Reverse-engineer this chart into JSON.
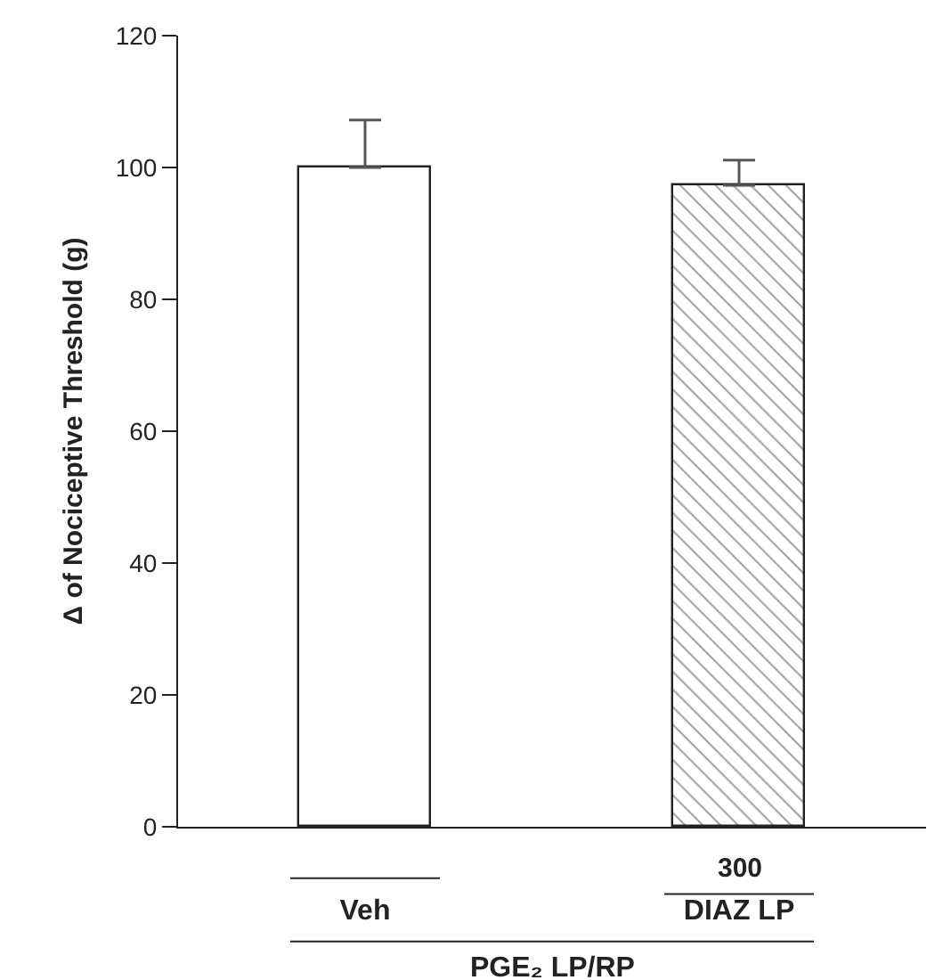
{
  "chart_data": {
    "type": "bar",
    "ylabel": "Δ of Nociceptive Threshold (g)",
    "categories": [
      "Veh",
      "DIAZ LP"
    ],
    "series": [
      {
        "colors": [
          "#ffffff",
          "#222222"
        ],
        "values": [
          100,
          97.3
        ],
        "errors": [
          [
            100,
            107.2
          ],
          [
            97.3,
            101.1
          ]
        ]
      }
    ],
    "ylim": [
      0,
      120
    ],
    "yticks": [
      0,
      20,
      40,
      60,
      80,
      100,
      120
    ],
    "annotations": [
      "300",
      "PGE₂ LP/RP"
    ],
    "legend": false
  }
}
